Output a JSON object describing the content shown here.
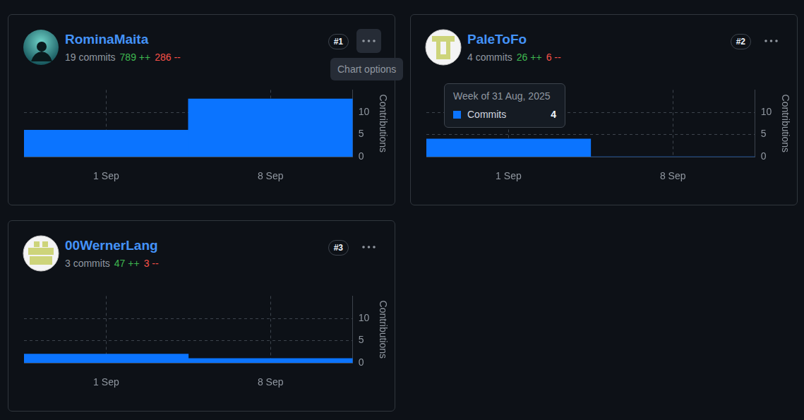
{
  "chart_data": [
    {
      "type": "bar",
      "title": "RominaMaita",
      "rank": "#1",
      "stats": {
        "commits": "19 commits",
        "additions": "789 ++",
        "deletions": "286 --"
      },
      "menu_tooltip": "Chart options",
      "categories": [
        "1 Sep",
        "8 Sep"
      ],
      "values": [
        6,
        13
      ],
      "color": "#0b74ff",
      "y_label": "Contributions",
      "ylim": [
        0,
        15
      ],
      "yticks": [
        0,
        5,
        10
      ],
      "grid": true
    },
    {
      "type": "bar",
      "title": "PaleToFo",
      "rank": "#2",
      "stats": {
        "commits": "4 commits",
        "additions": "26 ++",
        "deletions": "6 --"
      },
      "tooltip": {
        "title": "Week of 31 Aug, 2025",
        "label": "Commits",
        "value": 4
      },
      "categories": [
        "1 Sep",
        "8 Sep"
      ],
      "values": [
        4,
        0
      ],
      "color": "#0b74ff",
      "y_label": "Contributions",
      "ylim": [
        0,
        15
      ],
      "yticks": [
        0,
        5,
        10
      ],
      "grid": true
    },
    {
      "type": "bar",
      "title": "00WernerLang",
      "rank": "#3",
      "stats": {
        "commits": "3 commits",
        "additions": "47 ++",
        "deletions": "3 --"
      },
      "categories": [
        "1 Sep",
        "8 Sep"
      ],
      "values": [
        2,
        1
      ],
      "color": "#0b74ff",
      "y_label": "Contributions",
      "ylim": [
        0,
        15
      ],
      "yticks": [
        0,
        5,
        10
      ],
      "grid": true
    }
  ]
}
